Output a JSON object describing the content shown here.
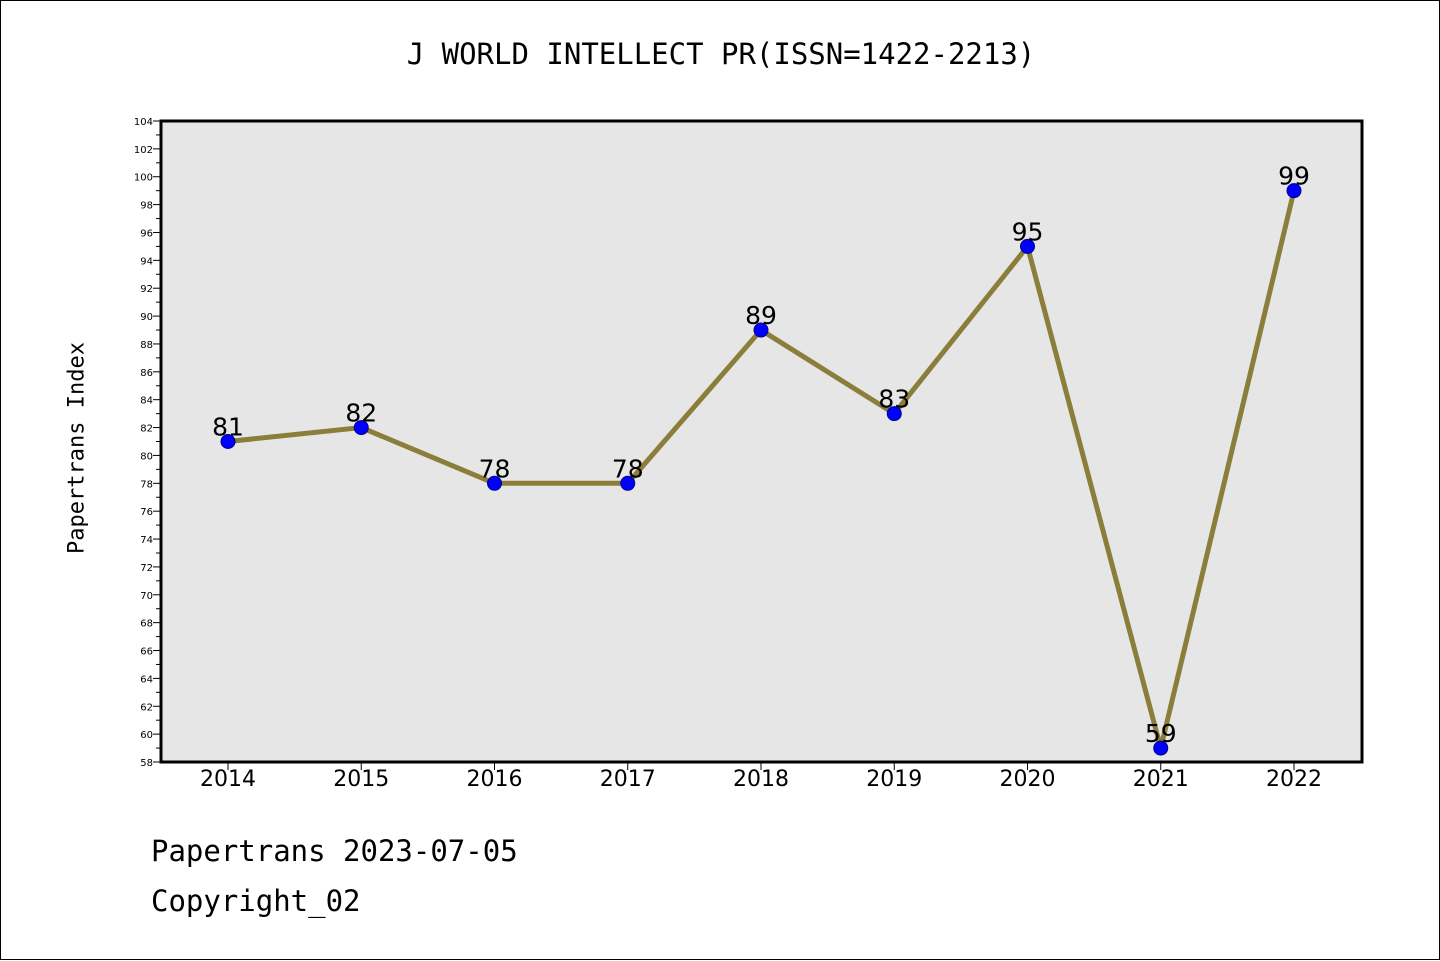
{
  "chart_data": {
    "type": "line",
    "title": "J WORLD INTELLECT PR(ISSN=1422-2213)",
    "ylabel": "Papertrans Index",
    "xlabel": "",
    "categories": [
      "2014",
      "2015",
      "2016",
      "2017",
      "2018",
      "2019",
      "2020",
      "2021",
      "2022"
    ],
    "series": [
      {
        "values": [
          81,
          82,
          78,
          78,
          89,
          83,
          95,
          59,
          99
        ]
      }
    ],
    "data_labels": [
      "81",
      "82",
      "78",
      "78",
      "89",
      "83",
      "95",
      "59",
      "99"
    ],
    "ylim": [
      58,
      104
    ],
    "yticks": [
      58,
      60,
      62,
      64,
      66,
      68,
      70,
      72,
      74,
      76,
      78,
      80,
      82,
      84,
      86,
      88,
      90,
      92,
      94,
      96,
      98,
      100,
      102,
      104
    ],
    "grid": false,
    "colors": {
      "line": "#8B7D3A",
      "marker": "#0000FF",
      "plot_background": "#E6E6E6"
    }
  },
  "footer": {
    "line1": "Papertrans 2023-07-05",
    "line2": "Copyright_02"
  }
}
